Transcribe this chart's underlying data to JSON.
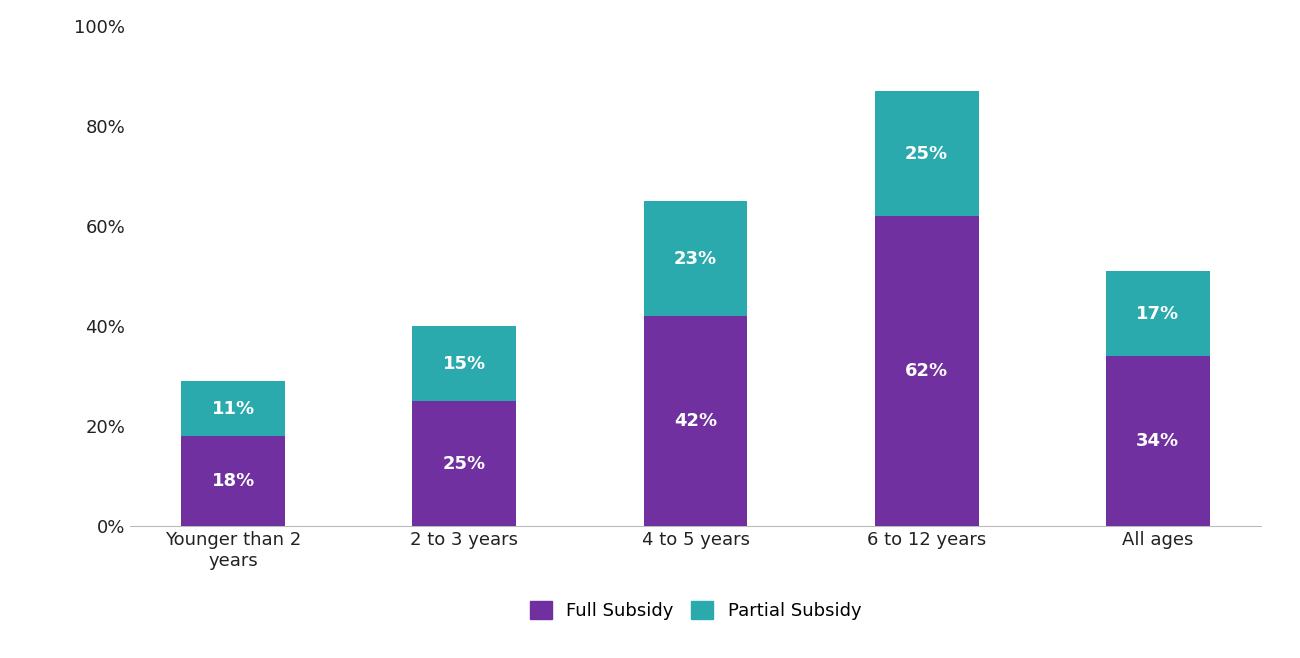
{
  "categories": [
    "Younger than 2\nyears",
    "2 to 3 years",
    "4 to 5 years",
    "6 to 12 years",
    "All ages"
  ],
  "full_subsidy": [
    18,
    25,
    42,
    62,
    34
  ],
  "partial_subsidy": [
    11,
    15,
    23,
    25,
    17
  ],
  "full_subsidy_color": "#7030A0",
  "partial_subsidy_color": "#2BAAAD",
  "background_color": "#FFFFFF",
  "ylim": [
    0,
    100
  ],
  "yticks": [
    0,
    20,
    40,
    60,
    80,
    100
  ],
  "ytick_labels": [
    "0%",
    "20%",
    "40%",
    "60%",
    "80%",
    "100%"
  ],
  "legend_full": "Full Subsidy",
  "legend_partial": "Partial Subsidy",
  "tick_fontsize": 13,
  "legend_fontsize": 13,
  "bar_width": 0.45,
  "value_label_color": "#FFFFFF",
  "value_label_fontsize": 13
}
